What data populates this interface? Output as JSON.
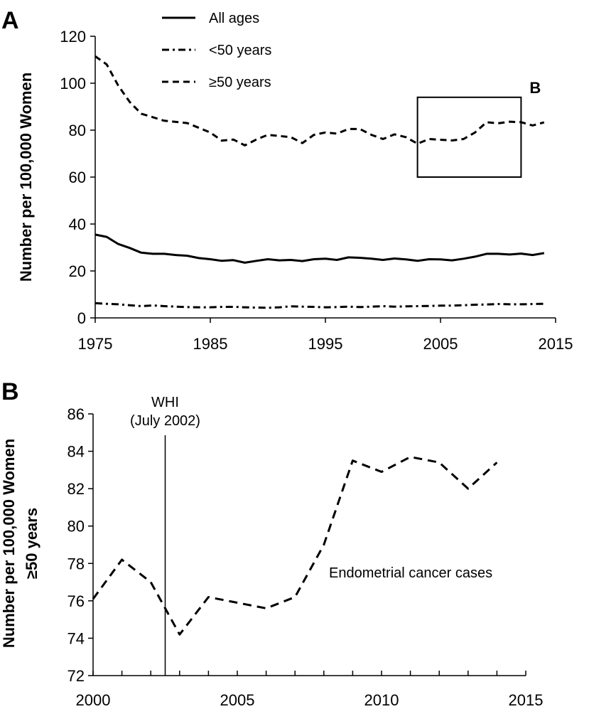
{
  "chart_data": [
    {
      "type": "line",
      "panel_label": "A",
      "xlim": [
        1975,
        2015
      ],
      "ylim": [
        0,
        120
      ],
      "x_ticks": [
        "1975",
        "1985",
        "1995",
        "2005",
        "2015"
      ],
      "y_ticks": [
        "0",
        "20",
        "40",
        "60",
        "80",
        "100",
        "120"
      ],
      "ylabel": "Number per 100,000 Women",
      "xlabel": "",
      "legend": {
        "placement": "top-center",
        "entries": [
          {
            "label": "All ages",
            "style": "solid"
          },
          {
            "label": "<50 years",
            "style": "dashdot"
          },
          {
            "label": "≥50 years",
            "style": "dashed"
          }
        ]
      },
      "x": [
        1975,
        1976,
        1977,
        1978,
        1979,
        1980,
        1981,
        1982,
        1983,
        1984,
        1985,
        1986,
        1987,
        1988,
        1989,
        1990,
        1991,
        1992,
        1993,
        1994,
        1995,
        1996,
        1997,
        1998,
        1999,
        2000,
        2001,
        2002,
        2003,
        2004,
        2005,
        2006,
        2007,
        2008,
        2009,
        2010,
        2011,
        2012,
        2013,
        2014
      ],
      "series": [
        {
          "name": "All ages",
          "style": "solid",
          "values": [
            35.5,
            34.5,
            31.5,
            29.8,
            27.8,
            27.3,
            27.3,
            26.8,
            26.5,
            25.5,
            25.0,
            24.3,
            24.6,
            23.5,
            24.3,
            25.0,
            24.5,
            24.7,
            24.2,
            25.0,
            25.2,
            24.7,
            25.8,
            25.6,
            25.2,
            24.7,
            25.3,
            24.9,
            24.3,
            25.0,
            24.9,
            24.5,
            25.2,
            26.1,
            27.3,
            27.3,
            27.0,
            27.4,
            26.8,
            27.6
          ]
        },
        {
          "name": "<50 years",
          "style": "dashdot",
          "values": [
            6.3,
            6.0,
            5.8,
            5.4,
            5.0,
            5.3,
            5.0,
            4.8,
            4.6,
            4.5,
            4.5,
            4.7,
            4.7,
            4.5,
            4.4,
            4.3,
            4.5,
            4.9,
            4.8,
            4.7,
            4.5,
            4.6,
            4.8,
            4.6,
            4.8,
            5.0,
            4.8,
            4.9,
            5.0,
            5.1,
            5.2,
            5.2,
            5.4,
            5.6,
            5.7,
            5.9,
            5.8,
            5.8,
            5.9,
            6.0
          ]
        },
        {
          "name": "≥50 years",
          "style": "dashed",
          "values": [
            111.5,
            108.0,
            99.0,
            92.0,
            87.0,
            85.5,
            84.0,
            83.5,
            83.0,
            81.0,
            79.0,
            75.5,
            76.0,
            73.5,
            76.0,
            78.0,
            77.5,
            77.0,
            74.5,
            78.0,
            79.0,
            78.5,
            80.5,
            80.5,
            78.0,
            76.2,
            78.2,
            77.0,
            74.2,
            76.2,
            75.9,
            75.6,
            76.2,
            79.0,
            83.4,
            82.9,
            83.6,
            83.4,
            82.0,
            83.3
          ]
        }
      ],
      "annotation_box": {
        "label": "B",
        "x_range": [
          2003,
          2012
        ],
        "y_range": [
          60,
          94
        ]
      }
    },
    {
      "type": "line",
      "panel_label": "B",
      "xlim": [
        2000,
        2015
      ],
      "ylim": [
        72,
        86
      ],
      "x_ticks": [
        "2000",
        "2005",
        "2010",
        "2015"
      ],
      "y_ticks": [
        "72",
        "74",
        "76",
        "78",
        "80",
        "82",
        "84",
        "86"
      ],
      "ylabel_lines": [
        "Number per 100,000 Women",
        "≥50 years"
      ],
      "xlabel": "",
      "series": [
        {
          "name": "Endometrial cancer cases",
          "style": "dashed",
          "x": [
            2000,
            2001,
            2002,
            2003,
            2004,
            2005,
            2006,
            2007,
            2008,
            2009,
            2010,
            2011,
            2012,
            2013,
            2014
          ],
          "values": [
            76.1,
            78.2,
            77.0,
            74.2,
            76.2,
            75.9,
            75.6,
            76.2,
            79.0,
            83.5,
            82.9,
            83.7,
            83.4,
            82.0,
            83.4
          ]
        }
      ],
      "series_label": "Endometrial cancer cases",
      "vline": {
        "x": 2002.5,
        "label_lines": [
          "WHI",
          "(July 2002)"
        ]
      }
    }
  ]
}
